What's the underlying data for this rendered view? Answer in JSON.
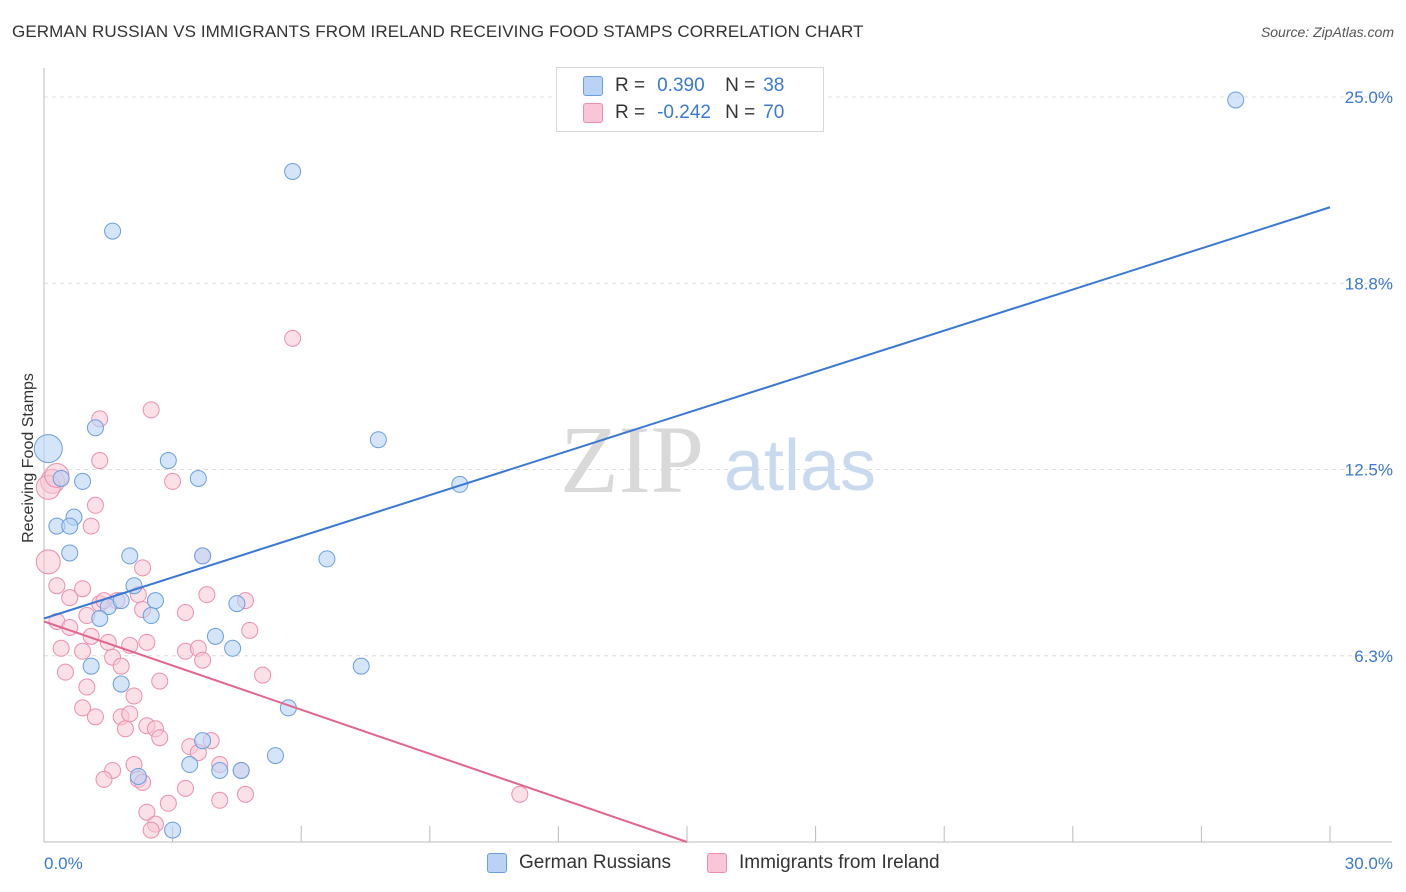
{
  "header": {
    "title": "GERMAN RUSSIAN VS IMMIGRANTS FROM IRELAND RECEIVING FOOD STAMPS CORRELATION CHART",
    "source": "Source: ZipAtlas.com"
  },
  "watermark": {
    "zip": "ZIP",
    "atlas": "atlas"
  },
  "legend_top": {
    "rows": [
      {
        "r_label": "R =",
        "r_value": "0.390",
        "n_label": "N =",
        "n_value": "38"
      },
      {
        "r_label": "R =",
        "r_value": "-0.242",
        "n_label": "N =",
        "n_value": "70"
      }
    ]
  },
  "legend_bottom": {
    "items": [
      "German Russians",
      "Immigrants from Ireland"
    ]
  },
  "colors": {
    "blue_fill": "#b8d3f5",
    "blue_stroke": "#6a9ee0",
    "blue_line": "#3a78d4",
    "pink_fill": "#f8c6d6",
    "pink_stroke": "#ec8fac",
    "pink_line": "#e2648f",
    "tick_text": "#3a78d4",
    "grid": "#dddddd"
  },
  "chart_data": {
    "type": "scatter",
    "title": "GERMAN RUSSIAN VS IMMIGRANTS FROM IRELAND RECEIVING FOOD STAMPS CORRELATION CHART",
    "xlabel": "",
    "ylabel": "Receiving Food Stamps",
    "xlim": [
      0,
      30
    ],
    "ylim": [
      0,
      25
    ],
    "x_tick_labels": [
      "0.0%",
      "30.0%"
    ],
    "y_ticks": [
      6.25,
      12.5,
      18.75,
      25.0
    ],
    "y_tick_labels": [
      "6.3%",
      "12.5%",
      "18.8%",
      "25.0%"
    ],
    "grid": true,
    "legend_position": "top-center",
    "series": [
      {
        "name": "German Russians",
        "r": 0.39,
        "n": 38,
        "trend": {
          "x": [
            0,
            30
          ],
          "y": [
            7.5,
            21.3
          ]
        },
        "points": [
          [
            0.1,
            13.2
          ],
          [
            0.4,
            12.2
          ],
          [
            0.9,
            12.1
          ],
          [
            0.7,
            10.9
          ],
          [
            0.3,
            10.6
          ],
          [
            0.6,
            10.6
          ],
          [
            0.6,
            9.7
          ],
          [
            1.6,
            20.5
          ],
          [
            1.2,
            13.9
          ],
          [
            2.0,
            9.6
          ],
          [
            2.9,
            12.8
          ],
          [
            3.6,
            12.2
          ],
          [
            3.7,
            9.6
          ],
          [
            2.1,
            8.6
          ],
          [
            1.5,
            7.9
          ],
          [
            1.8,
            8.1
          ],
          [
            2.6,
            8.1
          ],
          [
            2.5,
            7.6
          ],
          [
            1.3,
            7.5
          ],
          [
            1.1,
            5.9
          ],
          [
            1.8,
            5.3
          ],
          [
            4.5,
            8.0
          ],
          [
            4.4,
            6.5
          ],
          [
            4.0,
            6.9
          ],
          [
            5.8,
            22.5
          ],
          [
            6.6,
            9.5
          ],
          [
            7.8,
            13.5
          ],
          [
            9.7,
            12.0
          ],
          [
            7.4,
            5.9
          ],
          [
            5.7,
            4.5
          ],
          [
            5.4,
            2.9
          ],
          [
            4.6,
            2.4
          ],
          [
            4.1,
            2.4
          ],
          [
            3.7,
            3.4
          ],
          [
            3.4,
            2.6
          ],
          [
            2.2,
            2.2
          ],
          [
            3.0,
            0.4
          ],
          [
            27.8,
            24.9
          ]
        ]
      },
      {
        "name": "Immigrants from Ireland",
        "r": -0.242,
        "n": 70,
        "trend": {
          "x": [
            0,
            15
          ],
          "y": [
            7.4,
            0.0
          ]
        },
        "points": [
          [
            0.2,
            12.1
          ],
          [
            0.1,
            11.9
          ],
          [
            0.1,
            9.4
          ],
          [
            0.3,
            12.3
          ],
          [
            1.3,
            12.8
          ],
          [
            1.2,
            11.3
          ],
          [
            1.1,
            10.6
          ],
          [
            1.3,
            14.2
          ],
          [
            2.5,
            14.5
          ],
          [
            3.0,
            12.1
          ],
          [
            5.8,
            16.9
          ],
          [
            3.7,
            9.6
          ],
          [
            2.3,
            9.2
          ],
          [
            0.3,
            8.6
          ],
          [
            0.6,
            8.2
          ],
          [
            0.9,
            8.5
          ],
          [
            1.3,
            8.0
          ],
          [
            1.4,
            8.1
          ],
          [
            1.7,
            8.1
          ],
          [
            2.2,
            8.3
          ],
          [
            2.3,
            7.8
          ],
          [
            3.3,
            7.7
          ],
          [
            3.8,
            8.3
          ],
          [
            4.7,
            8.1
          ],
          [
            4.8,
            7.1
          ],
          [
            0.3,
            7.4
          ],
          [
            0.6,
            7.2
          ],
          [
            1.0,
            7.6
          ],
          [
            1.1,
            6.9
          ],
          [
            1.5,
            6.7
          ],
          [
            2.0,
            6.6
          ],
          [
            2.4,
            6.7
          ],
          [
            0.4,
            6.5
          ],
          [
            0.9,
            6.4
          ],
          [
            1.6,
            6.2
          ],
          [
            3.3,
            6.4
          ],
          [
            3.6,
            6.5
          ],
          [
            3.7,
            6.1
          ],
          [
            1.8,
            5.9
          ],
          [
            0.5,
            5.7
          ],
          [
            5.1,
            5.6
          ],
          [
            2.7,
            5.4
          ],
          [
            1.0,
            5.2
          ],
          [
            2.1,
            4.9
          ],
          [
            0.9,
            4.5
          ],
          [
            1.2,
            4.2
          ],
          [
            1.8,
            4.2
          ],
          [
            2.0,
            4.3
          ],
          [
            1.9,
            3.8
          ],
          [
            2.4,
            3.9
          ],
          [
            2.6,
            3.8
          ],
          [
            2.7,
            3.5
          ],
          [
            3.4,
            3.2
          ],
          [
            3.6,
            3.0
          ],
          [
            3.9,
            3.4
          ],
          [
            4.1,
            2.6
          ],
          [
            4.6,
            2.4
          ],
          [
            1.6,
            2.4
          ],
          [
            2.1,
            2.6
          ],
          [
            1.4,
            2.1
          ],
          [
            2.2,
            2.1
          ],
          [
            2.3,
            2.0
          ],
          [
            3.3,
            1.8
          ],
          [
            2.9,
            1.3
          ],
          [
            2.4,
            1.0
          ],
          [
            2.6,
            0.6
          ],
          [
            4.1,
            1.4
          ],
          [
            4.7,
            1.6
          ],
          [
            11.1,
            1.6
          ],
          [
            2.5,
            0.4
          ]
        ]
      }
    ]
  }
}
